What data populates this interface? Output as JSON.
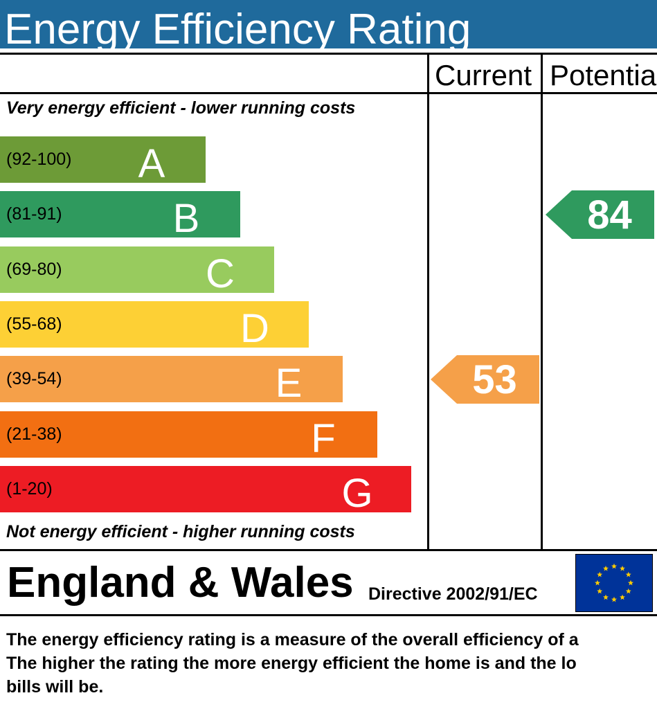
{
  "title": "Energy Efficiency Rating",
  "columns": {
    "current": "Current",
    "potential": "Potentia"
  },
  "top_caption": "Very energy efficient - lower running costs",
  "bottom_caption": "Not energy efficient - higher running costs",
  "bands": [
    {
      "range": "(92-100)",
      "letter": "A",
      "color": "#6d9b37",
      "range_color": "#000000"
    },
    {
      "range": "(81-91)",
      "letter": "B",
      "color": "#2f9a5e",
      "range_color": "#000000"
    },
    {
      "range": "(69-80)",
      "letter": "C",
      "color": "#98cb5e",
      "range_color": "#000000"
    },
    {
      "range": "(55-68)",
      "letter": "D",
      "color": "#fdd035",
      "range_color": "#000000"
    },
    {
      "range": "(39-54)",
      "letter": "E",
      "color": "#f5a049",
      "range_color": "#000000"
    },
    {
      "range": "(21-38)",
      "letter": "F",
      "color": "#f26f12",
      "range_color": "#000000"
    },
    {
      "range": "(1-20)",
      "letter": "G",
      "color": "#ed1c24",
      "range_color": "#000000"
    }
  ],
  "current_rating": {
    "value": "53",
    "band": "E",
    "color": "#f5a049"
  },
  "potential_rating": {
    "value": "84",
    "band": "B",
    "color": "#2f9a5e"
  },
  "footer": {
    "region": "England & Wales",
    "directive": "Directive 2002/91/EC",
    "flag_icon": "eu-flag-icon"
  },
  "description": [
    "The energy efficiency rating is a measure of the overall efficiency of a",
    "The higher the rating the more energy efficient the home is and the lo",
    "bills will be."
  ]
}
